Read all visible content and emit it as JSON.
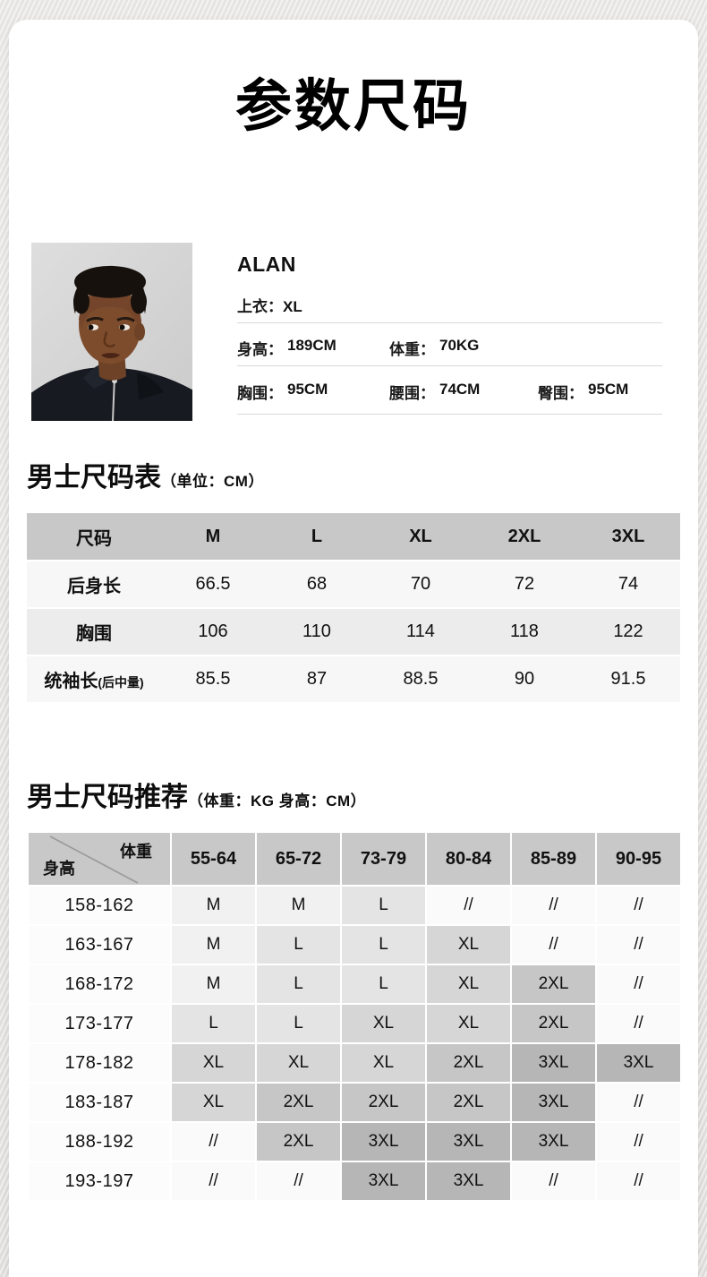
{
  "page": {
    "title": "参数尺码"
  },
  "model": {
    "name": "ALAN",
    "size_row": {
      "label": "上衣：",
      "value": "XL"
    },
    "rows": [
      [
        {
          "label": "身高：",
          "value": "189CM"
        },
        {
          "label": "体重：",
          "value": "70KG"
        }
      ],
      [
        {
          "label": "胸围：",
          "value": "95CM"
        },
        {
          "label": "腰围：",
          "value": "74CM"
        },
        {
          "label": "臀围：",
          "value": "95CM"
        }
      ]
    ]
  },
  "size_table": {
    "title": "男士尺码表",
    "title_note": "（单位：CM）",
    "header": [
      "尺码",
      "M",
      "L",
      "XL",
      "2XL",
      "3XL"
    ],
    "rows": [
      {
        "label": "后身长",
        "label_note": "",
        "values": [
          "66.5",
          "68",
          "70",
          "72",
          "74"
        ]
      },
      {
        "label": "胸围",
        "label_note": "",
        "values": [
          "106",
          "110",
          "114",
          "118",
          "122"
        ]
      },
      {
        "label": "统袖长",
        "label_note": "(后中量)",
        "values": [
          "85.5",
          "87",
          "88.5",
          "90",
          "91.5"
        ]
      }
    ]
  },
  "recommend_table": {
    "title": "男士尺码推荐",
    "title_note": "（体重：KG 身高：CM）",
    "corner_top": "体重",
    "corner_bottom": "身高",
    "weight_headers": [
      "55-64",
      "65-72",
      "73-79",
      "80-84",
      "85-89",
      "90-95"
    ],
    "rows": [
      {
        "height": "158-162",
        "sizes": [
          "M",
          "M",
          "L",
          "//",
          "//",
          "//"
        ]
      },
      {
        "height": "163-167",
        "sizes": [
          "M",
          "L",
          "L",
          "XL",
          "//",
          "//"
        ]
      },
      {
        "height": "168-172",
        "sizes": [
          "M",
          "L",
          "L",
          "XL",
          "2XL",
          "//"
        ]
      },
      {
        "height": "173-177",
        "sizes": [
          "L",
          "L",
          "XL",
          "XL",
          "2XL",
          "//"
        ]
      },
      {
        "height": "178-182",
        "sizes": [
          "XL",
          "XL",
          "XL",
          "2XL",
          "3XL",
          "3XL"
        ]
      },
      {
        "height": "183-187",
        "sizes": [
          "XL",
          "2XL",
          "2XL",
          "2XL",
          "3XL",
          "//"
        ]
      },
      {
        "height": "188-192",
        "sizes": [
          "//",
          "2XL",
          "3XL",
          "3XL",
          "3XL",
          "//"
        ]
      },
      {
        "height": "193-197",
        "sizes": [
          "//",
          "//",
          "3XL",
          "3XL",
          "//",
          "//"
        ]
      }
    ],
    "size_colors": {
      "M": "#f1f1f1",
      "L": "#e4e4e4",
      "XL": "#d6d6d6",
      "2XL": "#c6c6c6",
      "3XL": "#b6b6b6",
      "//": "#fafafa"
    }
  },
  "colors": {
    "table_header_bg": "#c8c8c8",
    "row_light": "#f7f7f7",
    "row_alt": "#ececec",
    "label_col_bg": "#fcfcfc",
    "divider": "#d9d9d9",
    "diagonal_line": "#9a9a9a"
  }
}
